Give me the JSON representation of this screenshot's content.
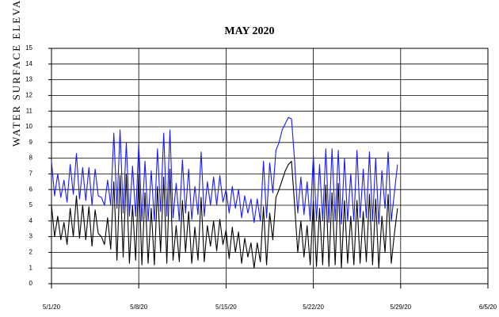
{
  "chart_data": {
    "type": "line",
    "title": "MAY 2020",
    "y_label": "WATER SURFACE ELEVAT",
    "x": [
      "2020-05-01T00:00",
      "2020-05-01T06:00",
      "2020-05-01T12:00",
      "2020-05-01T18:00",
      "2020-05-02T00:00",
      "2020-05-02T06:00",
      "2020-05-02T12:00",
      "2020-05-02T18:00",
      "2020-05-03T00:00",
      "2020-05-03T06:00",
      "2020-05-03T12:00",
      "2020-05-03T18:00",
      "2020-05-04T00:00",
      "2020-05-04T06:00",
      "2020-05-04T12:00",
      "2020-05-04T18:00",
      "2020-05-05T00:00",
      "2020-05-05T06:00",
      "2020-05-05T12:00",
      "2020-05-05T18:00",
      "2020-05-06T00:00",
      "2020-05-06T06:00",
      "2020-05-06T12:00",
      "2020-05-06T18:00",
      "2020-05-07T00:00",
      "2020-05-07T06:00",
      "2020-05-07T12:00",
      "2020-05-07T18:00",
      "2020-05-08T00:00",
      "2020-05-08T06:00",
      "2020-05-08T12:00",
      "2020-05-08T18:00",
      "2020-05-09T00:00",
      "2020-05-09T06:00",
      "2020-05-09T12:00",
      "2020-05-09T18:00",
      "2020-05-10T00:00",
      "2020-05-10T06:00",
      "2020-05-10T12:00",
      "2020-05-10T18:00",
      "2020-05-11T00:00",
      "2020-05-11T06:00",
      "2020-05-11T12:00",
      "2020-05-11T18:00",
      "2020-05-12T00:00",
      "2020-05-12T06:00",
      "2020-05-12T12:00",
      "2020-05-12T18:00",
      "2020-05-13T00:00",
      "2020-05-13T06:00",
      "2020-05-13T12:00",
      "2020-05-13T18:00",
      "2020-05-14T00:00",
      "2020-05-14T06:00",
      "2020-05-14T12:00",
      "2020-05-14T18:00",
      "2020-05-15T00:00",
      "2020-05-15T06:00",
      "2020-05-15T12:00",
      "2020-05-15T18:00",
      "2020-05-16T00:00",
      "2020-05-16T06:00",
      "2020-05-16T12:00",
      "2020-05-16T18:00",
      "2020-05-17T00:00",
      "2020-05-17T06:00",
      "2020-05-17T12:00",
      "2020-05-17T18:00",
      "2020-05-18T00:00",
      "2020-05-18T06:00",
      "2020-05-18T12:00",
      "2020-05-18T18:00",
      "2020-05-19T00:00",
      "2020-05-19T06:00",
      "2020-05-19T12:00",
      "2020-05-19T18:00",
      "2020-05-20T00:00",
      "2020-05-20T06:00",
      "2020-05-20T12:00",
      "2020-05-20T18:00",
      "2020-05-21T00:00",
      "2020-05-21T06:00",
      "2020-05-21T12:00",
      "2020-05-21T18:00",
      "2020-05-22T00:00",
      "2020-05-22T06:00",
      "2020-05-22T12:00",
      "2020-05-22T18:00",
      "2020-05-23T00:00",
      "2020-05-23T06:00",
      "2020-05-23T12:00",
      "2020-05-23T18:00",
      "2020-05-24T00:00",
      "2020-05-24T06:00",
      "2020-05-24T12:00",
      "2020-05-24T18:00",
      "2020-05-25T00:00",
      "2020-05-25T06:00",
      "2020-05-25T12:00",
      "2020-05-25T18:00",
      "2020-05-26T00:00",
      "2020-05-26T06:00",
      "2020-05-26T12:00",
      "2020-05-26T18:00",
      "2020-05-27T00:00",
      "2020-05-27T06:00",
      "2020-05-27T12:00",
      "2020-05-27T18:00",
      "2020-05-28T00:00",
      "2020-05-28T06:00",
      "2020-05-28T12:00",
      "2020-05-28T18:00"
    ],
    "series": [
      {
        "color": "#1a1aff",
        "values": [
          7.8,
          5.6,
          7.0,
          5.5,
          6.6,
          5.2,
          7.6,
          5.7,
          8.3,
          5.4,
          7.4,
          5.3,
          7.4,
          5.0,
          7.3,
          5.6,
          5.5,
          5.0,
          6.6,
          5.0,
          9.6,
          4.8,
          9.8,
          4.5,
          9.0,
          4.3,
          7.5,
          4.3,
          8.9,
          4.0,
          7.8,
          4.0,
          7.2,
          4.0,
          8.6,
          4.6,
          9.6,
          4.3,
          9.8,
          4.2,
          6.4,
          4.0,
          7.9,
          4.5,
          7.3,
          4.1,
          6.2,
          4.4,
          8.4,
          4.3,
          6.5,
          5.0,
          6.8,
          5.0,
          6.9,
          5.2,
          6.0,
          4.5,
          6.2,
          4.8,
          6.0,
          4.2,
          5.6,
          4.5,
          5.4,
          3.9,
          5.4,
          4.0,
          7.8,
          4.2,
          7.7,
          5.8,
          8.5,
          9.0,
          9.8,
          10.2,
          10.6,
          10.5,
          7.8,
          4.5,
          6.8,
          4.4,
          6.5,
          4.0,
          8.2,
          4.0,
          7.6,
          4.0,
          8.6,
          3.9,
          8.6,
          4.0,
          8.5,
          3.8,
          8.0,
          4.0,
          7.0,
          4.0,
          8.5,
          4.2,
          7.3,
          4.2,
          8.4,
          4.0,
          8.0,
          3.8,
          7.2,
          4.8,
          8.4,
          4.0,
          5.8,
          7.6
        ]
      },
      {
        "color": "#000000",
        "values": [
          5.0,
          3.0,
          4.3,
          2.8,
          3.9,
          2.5,
          4.8,
          3.0,
          5.6,
          2.9,
          5.0,
          2.8,
          4.9,
          2.4,
          4.7,
          3.2,
          3.0,
          2.5,
          4.2,
          2.2,
          6.5,
          1.5,
          6.9,
          1.7,
          7.0,
          1.3,
          5.0,
          1.5,
          7.0,
          1.2,
          5.8,
          1.3,
          4.8,
          1.2,
          6.2,
          2.0,
          6.8,
          1.3,
          7.3,
          1.5,
          3.7,
          1.4,
          5.3,
          2.0,
          4.6,
          1.3,
          3.6,
          1.5,
          5.5,
          1.4,
          3.7,
          2.4,
          4.0,
          2.1,
          4.1,
          2.5,
          3.4,
          1.6,
          3.6,
          2.0,
          3.3,
          1.3,
          2.9,
          1.7,
          2.6,
          1.0,
          2.6,
          1.4,
          4.9,
          1.2,
          4.5,
          2.8,
          5.5,
          6.0,
          6.6,
          7.2,
          7.6,
          7.8,
          5.0,
          2.0,
          4.0,
          1.7,
          3.7,
          1.2,
          5.3,
          1.1,
          4.8,
          1.2,
          6.3,
          1.1,
          5.8,
          1.2,
          6.4,
          1.0,
          5.3,
          1.3,
          4.3,
          1.2,
          5.3,
          1.3,
          4.6,
          1.4,
          5.7,
          1.2,
          5.4,
          1.0,
          4.3,
          2.0,
          5.7,
          1.3,
          3.2,
          4.8
        ]
      }
    ],
    "xlim": [
      "2020-05-01T00:00",
      "2020-06-05T00:00"
    ],
    "xticks": [
      {
        "value": "2020-05-01T00:00",
        "label": "5/1/20"
      },
      {
        "value": "2020-05-08T00:00",
        "label": "5/8/20"
      },
      {
        "value": "2020-05-15T00:00",
        "label": "5/15/20"
      },
      {
        "value": "2020-05-22T00:00",
        "label": "5/22/20"
      },
      {
        "value": "2020-05-29T00:00",
        "label": "5/29/20"
      },
      {
        "value": "2020-06-05T00:00",
        "label": "6/5/20"
      }
    ],
    "ylim": [
      0,
      15
    ],
    "yticks": [
      0,
      1,
      2,
      3,
      4,
      5,
      6,
      7,
      8,
      9,
      10,
      11,
      12,
      13,
      14,
      15
    ],
    "grid": true
  }
}
